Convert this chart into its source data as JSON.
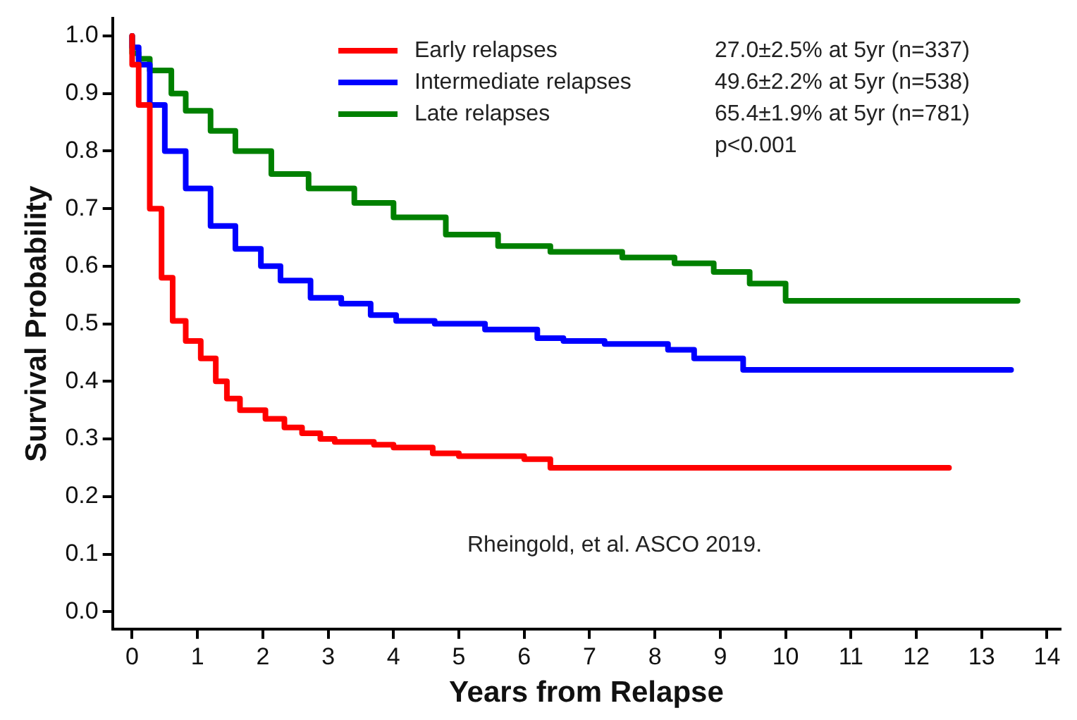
{
  "chart_data": {
    "type": "step",
    "xlabel": "Years from Relapse",
    "ylabel": "Survival Probability",
    "xlim": [
      -0.3,
      14.2
    ],
    "ylim": [
      -0.03,
      1.03
    ],
    "xticks": [
      0,
      1,
      2,
      3,
      4,
      5,
      6,
      7,
      8,
      9,
      10,
      11,
      12,
      13,
      14
    ],
    "yticks": [
      {
        "value": 0,
        "label": "0.0"
      },
      0.1,
      0.2,
      0.3,
      0.4,
      0.5,
      0.6,
      0.7,
      0.8,
      0.9,
      {
        "value": 1,
        "label": "1.0"
      }
    ],
    "legend": "top",
    "grid": false,
    "marker": "none",
    "line_style": "solid",
    "annotations": [
      "27.0±2.5% at 5yr (n=337)",
      "49.6±2.2% at 5yr (n=538)",
      "65.4±1.9% at 5yr (n=781)",
      "p<0.001",
      "Rheingold, et al. ASCO 2019."
    ],
    "series": [
      {
        "name": "Early relapses",
        "color": "#ff0000",
        "x": [
          0,
          0.1,
          0.27,
          0.45,
          0.62,
          0.82,
          1.05,
          1.28,
          1.45,
          1.65,
          2.04,
          2.33,
          2.6,
          2.88,
          3.1,
          3.7,
          4.0,
          4.6,
          5.0,
          5.5,
          6.0,
          6.4,
          6.55,
          12.5
        ],
        "values": [
          1.0,
          0.95,
          0.88,
          0.7,
          0.58,
          0.505,
          0.47,
          0.44,
          0.4,
          0.37,
          0.35,
          0.335,
          0.32,
          0.31,
          0.3,
          0.295,
          0.29,
          0.285,
          0.275,
          0.27,
          0.27,
          0.265,
          0.25,
          0.25
        ]
      },
      {
        "name": "Intermediate relapses",
        "color": "#0000ff",
        "x": [
          0,
          0.1,
          0.27,
          0.5,
          0.82,
          1.2,
          1.58,
          1.97,
          2.27,
          2.73,
          3.2,
          3.65,
          4.04,
          4.63,
          5.4,
          6.2,
          6.6,
          7.23,
          8.2,
          8.6,
          9.35,
          9.6,
          13.45
        ],
        "values": [
          1.0,
          0.98,
          0.95,
          0.88,
          0.8,
          0.735,
          0.67,
          0.63,
          0.6,
          0.575,
          0.545,
          0.535,
          0.515,
          0.505,
          0.5,
          0.49,
          0.475,
          0.47,
          0.465,
          0.455,
          0.44,
          0.42,
          0.42
        ]
      },
      {
        "name": "Late relapses",
        "color": "#008000",
        "x": [
          0,
          0.1,
          0.27,
          0.6,
          0.82,
          1.2,
          1.58,
          2.13,
          2.7,
          3.4,
          4.0,
          4.8,
          5.6,
          6.4,
          7.5,
          8.3,
          8.9,
          9.45,
          10.0,
          13.55
        ],
        "values": [
          1.0,
          0.97,
          0.96,
          0.94,
          0.9,
          0.87,
          0.835,
          0.8,
          0.76,
          0.735,
          0.71,
          0.685,
          0.655,
          0.635,
          0.625,
          0.615,
          0.605,
          0.59,
          0.57,
          0.54
        ]
      }
    ]
  }
}
